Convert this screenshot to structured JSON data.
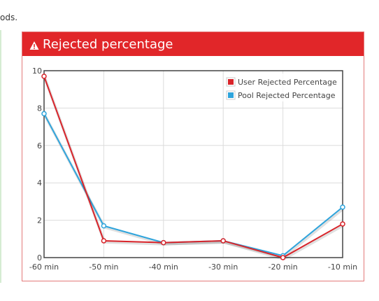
{
  "page": {
    "top_text": "ods."
  },
  "panel": {
    "title": "Rejected percentage",
    "icon": "warning-icon",
    "header_color": "#e12629"
  },
  "chart_data": {
    "type": "line",
    "x": [
      "-60 min",
      "-50 min",
      "-40 min",
      "-30 min",
      "-20 min",
      "-10 min"
    ],
    "yticks": [
      0,
      2,
      4,
      6,
      8,
      10
    ],
    "ylim": [
      0,
      10
    ],
    "grid": true,
    "legend_position": "top-right",
    "series": [
      {
        "name": "User Rejected Percentage",
        "color": "#d9242a",
        "values": [
          9.7,
          0.9,
          0.8,
          0.9,
          0.0,
          1.8
        ]
      },
      {
        "name": "Pool Rejected Percentage",
        "color": "#2ea4dc",
        "values": [
          7.7,
          1.7,
          0.8,
          0.9,
          0.1,
          2.7
        ]
      }
    ]
  }
}
